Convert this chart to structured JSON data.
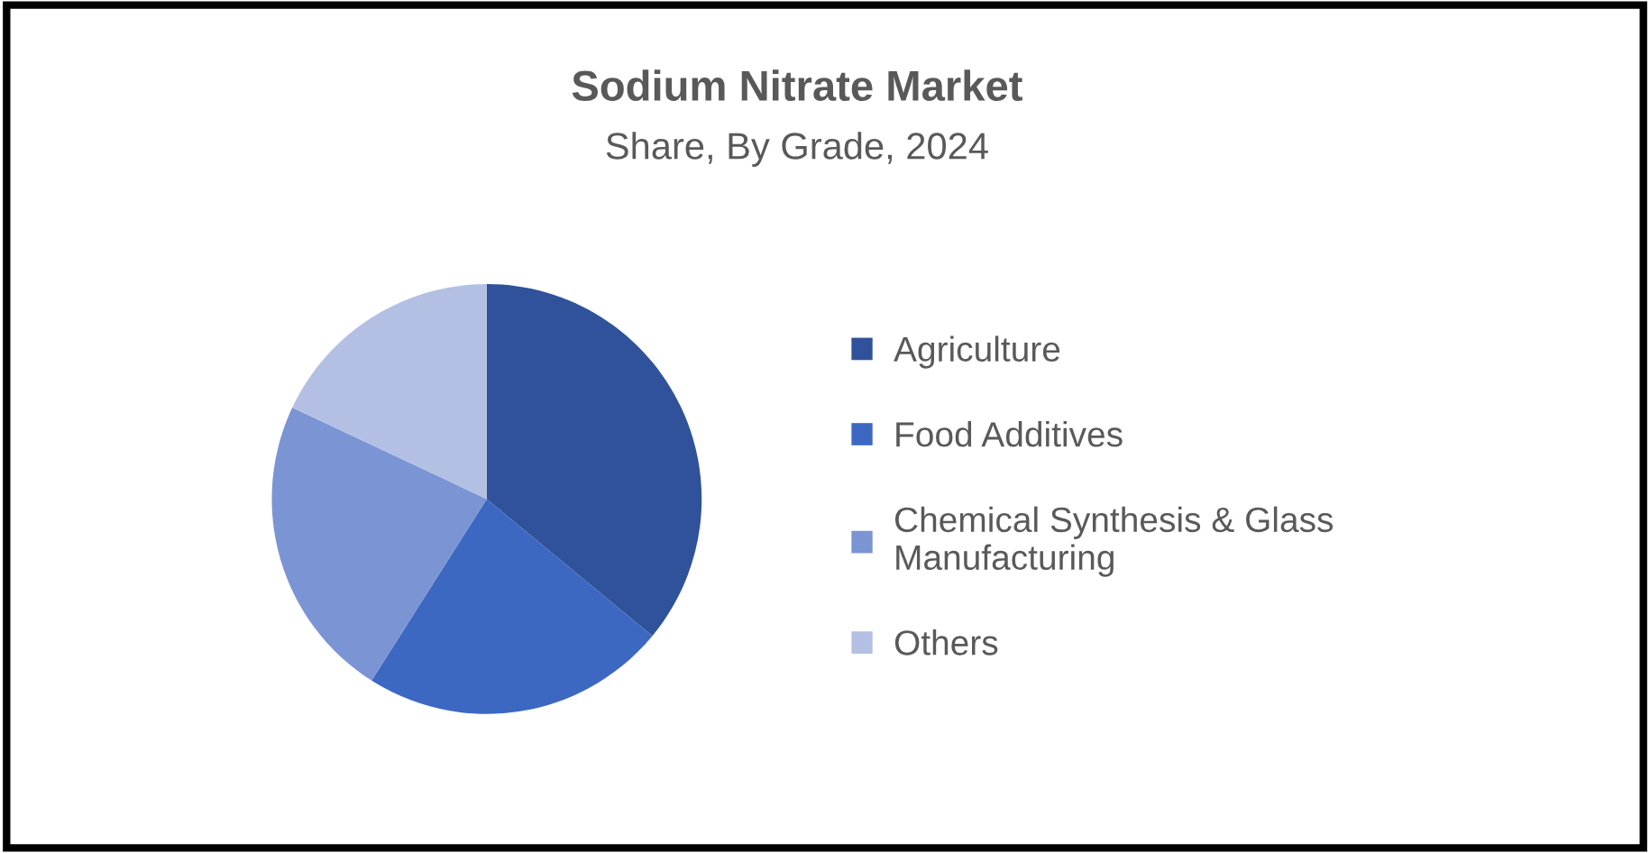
{
  "chart_data": {
    "type": "pie",
    "title": "Sodium Nitrate Market",
    "subtitle": "Share, By Grade, 2024",
    "categories": [
      "Agriculture",
      "Food Additives",
      "Chemical Synthesis & Glass\nManufacturing",
      "Others"
    ],
    "values": [
      36,
      23,
      23,
      18
    ],
    "colors": [
      "#2f529a",
      "#3d68c2",
      "#7b94d3",
      "#b3c0e3"
    ],
    "legend": "right"
  }
}
